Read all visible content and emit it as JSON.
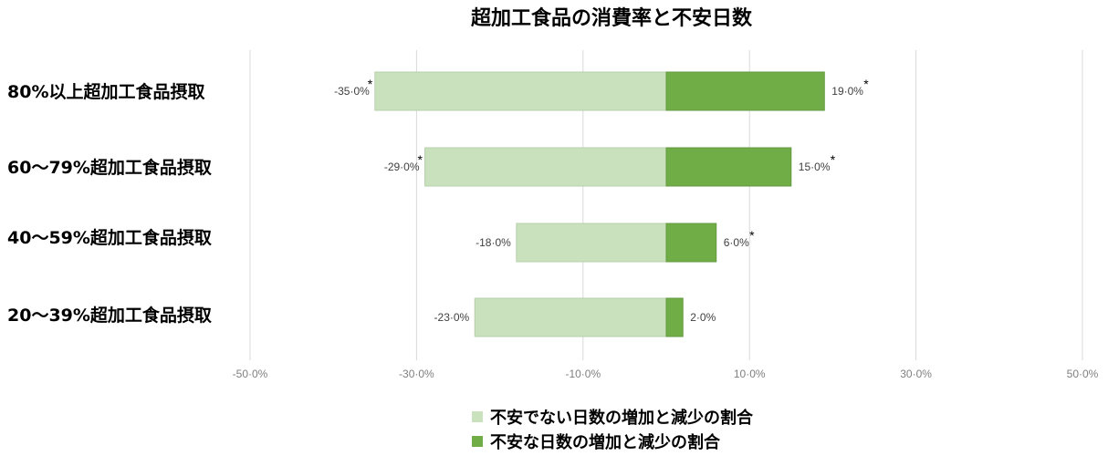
{
  "chart_data": {
    "type": "bar",
    "orientation": "horizontal",
    "title": "超加工食品の消費率と不安日数",
    "categories": [
      "80%以上超加工食品摂取",
      "60〜79%超加工食品摂取",
      "40〜59%超加工食品摂取",
      "20〜39%超加工食品摂取"
    ],
    "series": [
      {
        "name": "不安でない日数の増加と減少の割合",
        "values": [
          -35.0,
          -29.0,
          -18.0,
          -23.0
        ],
        "labels": [
          "-35·0%",
          "-29·0%",
          "-18·0%",
          "-23·0%"
        ],
        "significant": [
          true,
          true,
          false,
          false
        ],
        "color": "#c9e1bd"
      },
      {
        "name": "不安な日数の増加と減少の割合",
        "values": [
          19.0,
          15.0,
          6.0,
          2.0
        ],
        "labels": [
          "19·0%",
          "15·0%",
          "6·0%",
          "2·0%"
        ],
        "significant": [
          true,
          true,
          true,
          false
        ],
        "color": "#70ad47"
      }
    ],
    "xlim": [
      -50,
      50
    ],
    "xticks": [
      -50,
      -30,
      -10,
      10,
      30,
      50
    ],
    "xtick_labels": [
      "-50·0%",
      "-30·0%",
      "-10·0%",
      "10·0%",
      "30·0%",
      "50·0%"
    ],
    "significance_marker": "*",
    "grid": true,
    "legend_position": "bottom"
  }
}
